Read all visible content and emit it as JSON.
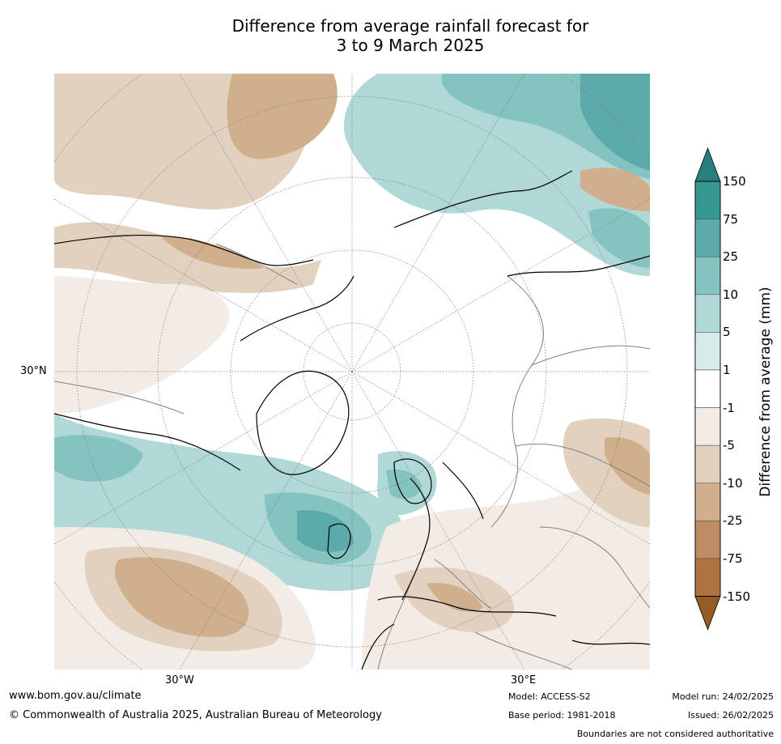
{
  "title": {
    "line1": "Difference from average rainfall forecast for",
    "line2": "3 to 9 March 2025"
  },
  "map": {
    "projection": "north-polar-stereographic",
    "latitude_label": "30°N",
    "longitude_labels": [
      "30°W",
      "30°E"
    ],
    "colors": {
      "teal_150": "#2a7f7c",
      "teal_75": "#35998f",
      "teal_25": "#5cabaa",
      "teal_10": "#85c3c1",
      "teal_5": "#afd8d6",
      "teal_1": "#d7ebea",
      "neutral": "#ffffff",
      "brown_1": "#f3ece6",
      "brown_5": "#e3d1c0",
      "brown_10": "#cfaf8c",
      "brown_25": "#bc8d63",
      "brown_75": "#ab7440",
      "brown_150": "#955c26"
    }
  },
  "colorbar": {
    "label": "Difference from average (mm)",
    "ticks": [
      "150",
      "75",
      "25",
      "10",
      "5",
      "1",
      "-1",
      "-5",
      "-10",
      "-25",
      "-75",
      "-150"
    ]
  },
  "footer": {
    "website": "www.bom.gov.au/climate",
    "copyright": "© Commonwealth of Australia 2025, Australian Bureau of Meteorology",
    "model": "Model: ACCESS-S2",
    "base_period": "Base period: 1981-2018",
    "model_run": "Model run: 24/02/2025",
    "issued": "Issued: 26/02/2025",
    "boundaries_note": "Boundaries are not considered authoritative"
  }
}
